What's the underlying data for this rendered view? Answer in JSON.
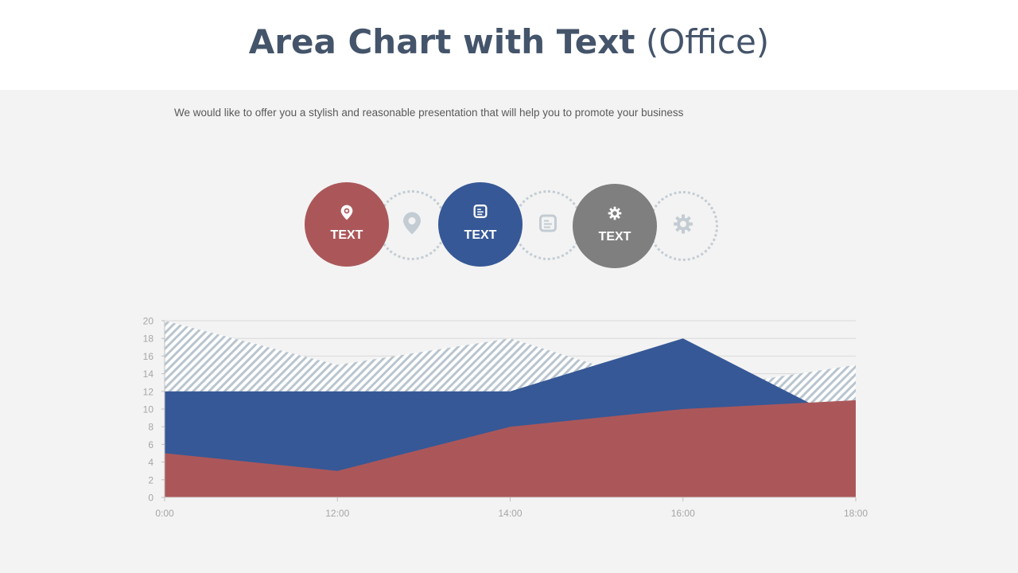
{
  "header": {
    "title_bold": "Area Chart with Text",
    "title_light": "(Office)"
  },
  "subtitle": "We would like to offer you a stylish and reasonable presentation that will help you to promote your business",
  "steps": [
    {
      "label": "TEXT",
      "icon": "map-pin-icon",
      "color": "#ab575a"
    },
    {
      "label": "TEXT",
      "icon": "document-icon",
      "color": "#365896"
    },
    {
      "label": "TEXT",
      "icon": "gear-icon",
      "color": "#7f7f7f"
    }
  ],
  "chart_data": {
    "type": "area",
    "categories": [
      "0:00",
      "12:00",
      "14:00",
      "16:00",
      "18:00"
    ],
    "series": [
      {
        "values": [
          20,
          15,
          18,
          12,
          15
        ],
        "color": "#b9c5cf",
        "fill": "hatched"
      },
      {
        "values": [
          12,
          12,
          12,
          18,
          8
        ],
        "color": "#365896"
      },
      {
        "values": [
          5,
          3,
          8,
          10,
          11
        ],
        "color": "#ab575a"
      }
    ],
    "ylim": [
      0,
      20
    ],
    "yticks": [
      "0",
      "2",
      "4",
      "6",
      "8",
      "10",
      "12",
      "14",
      "16",
      "18",
      "20"
    ],
    "grid": true
  }
}
